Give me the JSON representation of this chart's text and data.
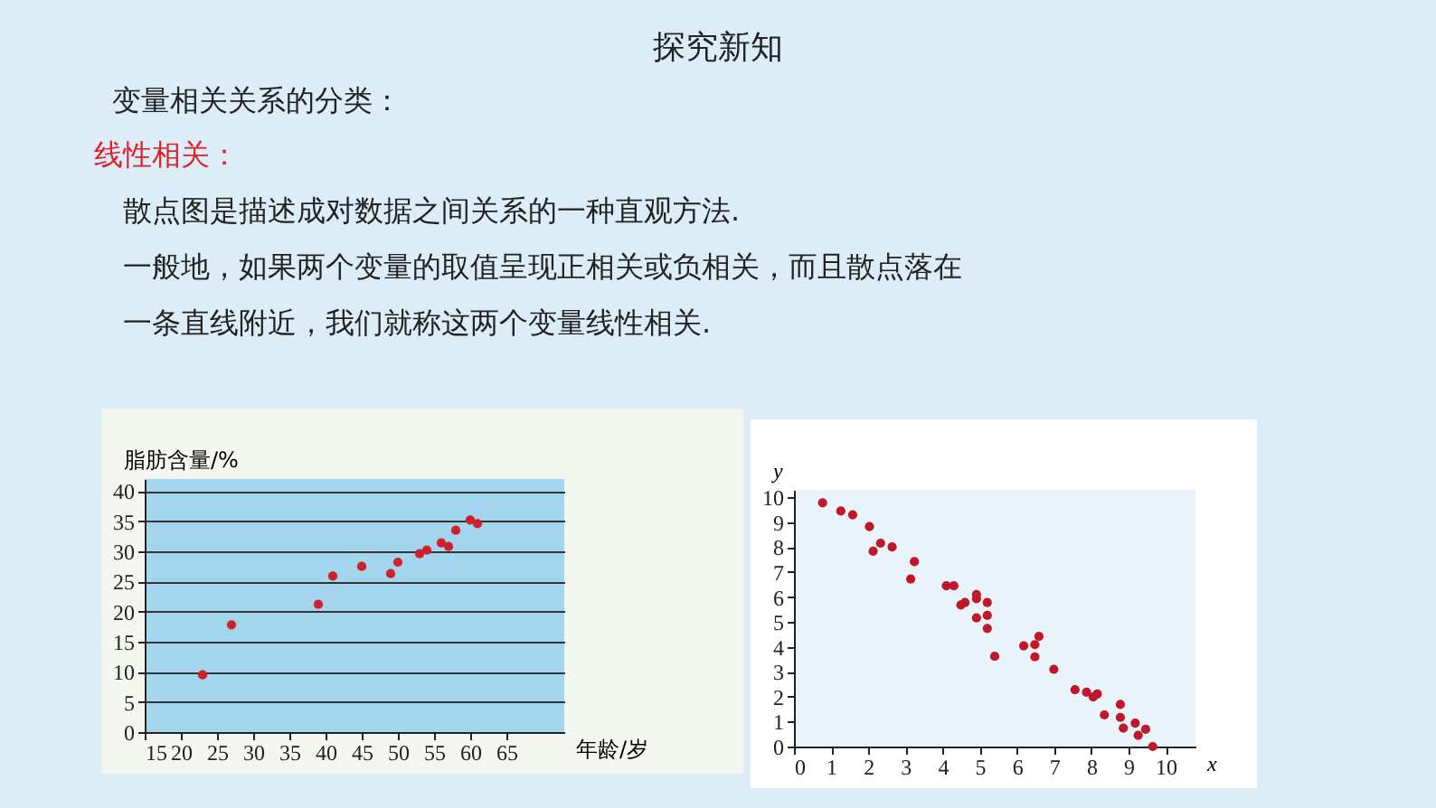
{
  "chart_data": [
    {
      "type": "other",
      "title": "探究新知",
      "subtitle": "变量相关关系的分类：",
      "annotations": [
        "线性相关：",
        "散点图是描述成对数据之间关系的一种直观方法.",
        "一般地，如果两个变量的取值呈现正相关或负相关，而且散点落在",
        "一条直线附近，我们就称这两个变量线性相关."
      ]
    },
    {
      "type": "scatter",
      "xlabel": "年龄/岁",
      "ylabel": "脂肪含量/%",
      "xlim": [
        15,
        73
      ],
      "xticks": [
        15,
        20,
        25,
        30,
        35,
        40,
        45,
        50,
        55,
        60,
        65
      ],
      "ylim": [
        0,
        42
      ],
      "yticks": [
        0,
        5,
        10,
        15,
        20,
        25,
        30,
        35,
        40
      ],
      "grid": "y",
      "marker": "circle",
      "series": [
        {
          "color": "#d0202e",
          "x": [
            23,
            27,
            39,
            41,
            45,
            49,
            50,
            53,
            54,
            56,
            57,
            58,
            60,
            61
          ],
          "values": [
            9.5,
            17.8,
            21.2,
            25.9,
            27.5,
            26.3,
            28.2,
            29.6,
            30.2,
            31.4,
            30.8,
            33.5,
            35.2,
            34.6
          ]
        }
      ]
    },
    {
      "type": "scatter",
      "xlabel": "x",
      "ylabel": "y",
      "xlim": [
        0,
        10.8
      ],
      "xticks": [
        0,
        1,
        2,
        3,
        4,
        5,
        6,
        7,
        8,
        9,
        10
      ],
      "ylim": [
        0,
        10.3
      ],
      "yticks": [
        0,
        1,
        2,
        3,
        4,
        5,
        6,
        7,
        8,
        9,
        10
      ],
      "marker": "circle",
      "series": [
        {
          "color": "#c0182a",
          "x": [
            0.77,
            1.26,
            1.58,
            2.03,
            2.13,
            2.33,
            2.64,
            3.14,
            3.24,
            4.1,
            4.3,
            4.49,
            4.6,
            4.91,
            4.91,
            4.91,
            5.2,
            5.2,
            5.2,
            5.4,
            6.18,
            6.48,
            6.48,
            6.59,
            6.99,
            7.56,
            7.87,
            8.05,
            8.16,
            8.35,
            8.78,
            8.78,
            8.86,
            9.18,
            9.26,
            9.46,
            9.65
          ],
          "values": [
            9.78,
            9.45,
            9.3,
            8.83,
            7.84,
            8.16,
            8.01,
            6.72,
            7.42,
            6.45,
            6.45,
            5.68,
            5.78,
            6.1,
            5.93,
            5.16,
            5.78,
            5.26,
            4.74,
            3.62,
            4.04,
            4.09,
            3.6,
            4.42,
            3.1,
            2.28,
            2.18,
            1.99,
            2.11,
            1.27,
            1.69,
            1.17,
            0.74,
            0.94,
            0.45,
            0.69,
            0
          ]
        }
      ]
    }
  ]
}
